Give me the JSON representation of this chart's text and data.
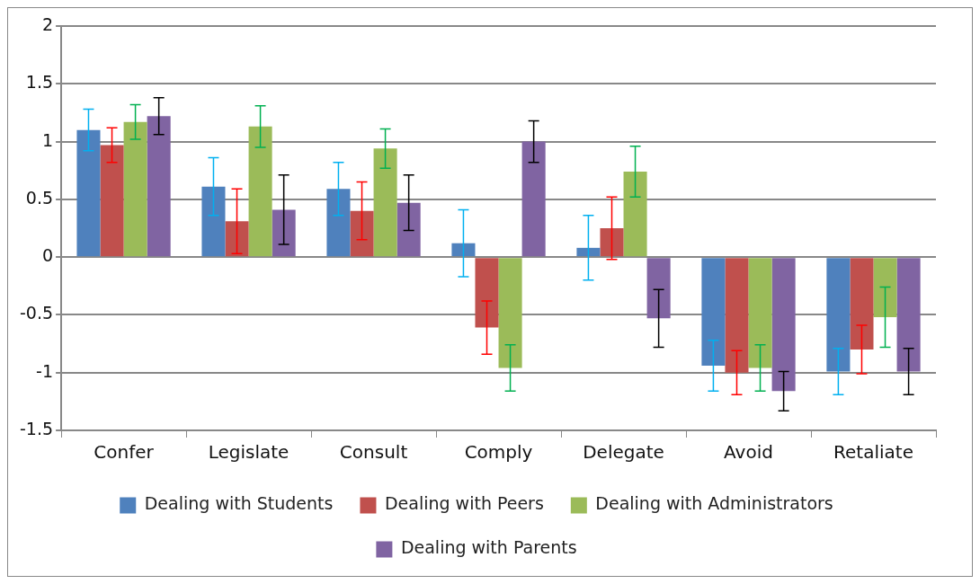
{
  "chart_data": {
    "type": "bar",
    "categories": [
      "Confer",
      "Legislate",
      "Consult",
      "Comply",
      "Delegate",
      "Avoid",
      "Retaliate"
    ],
    "series": [
      {
        "name": "Dealing with Students",
        "color": "#4f81bd",
        "values": [
          1.1,
          0.61,
          0.59,
          0.12,
          0.08,
          -0.94,
          -0.99
        ],
        "errors": [
          0.18,
          0.25,
          0.23,
          0.29,
          0.28,
          0.22,
          0.2
        ]
      },
      {
        "name": "Dealing with Peers",
        "color": "#c0504d",
        "values": [
          0.97,
          0.31,
          0.4,
          -0.61,
          0.25,
          -1.0,
          -0.8
        ],
        "errors": [
          0.15,
          0.28,
          0.25,
          0.23,
          0.27,
          0.19,
          0.21
        ]
      },
      {
        "name": "Dealing with Administrators",
        "color": "#9bbb59",
        "values": [
          1.17,
          1.13,
          0.94,
          -0.96,
          0.74,
          -0.96,
          -0.52
        ],
        "errors": [
          0.15,
          0.18,
          0.17,
          0.2,
          0.22,
          0.2,
          0.26
        ]
      },
      {
        "name": "Dealing with Parents",
        "color": "#8064a2",
        "values": [
          1.22,
          0.41,
          0.47,
          1.0,
          -0.53,
          -1.16,
          -0.99
        ],
        "errors": [
          0.16,
          0.3,
          0.24,
          0.18,
          0.25,
          0.17,
          0.2
        ]
      }
    ],
    "ylim": [
      -1.5,
      2
    ],
    "yticks": [
      -1.5,
      -1,
      -0.5,
      0,
      0.5,
      1,
      1.5,
      2
    ],
    "grid": "y",
    "legend": "bottom"
  }
}
